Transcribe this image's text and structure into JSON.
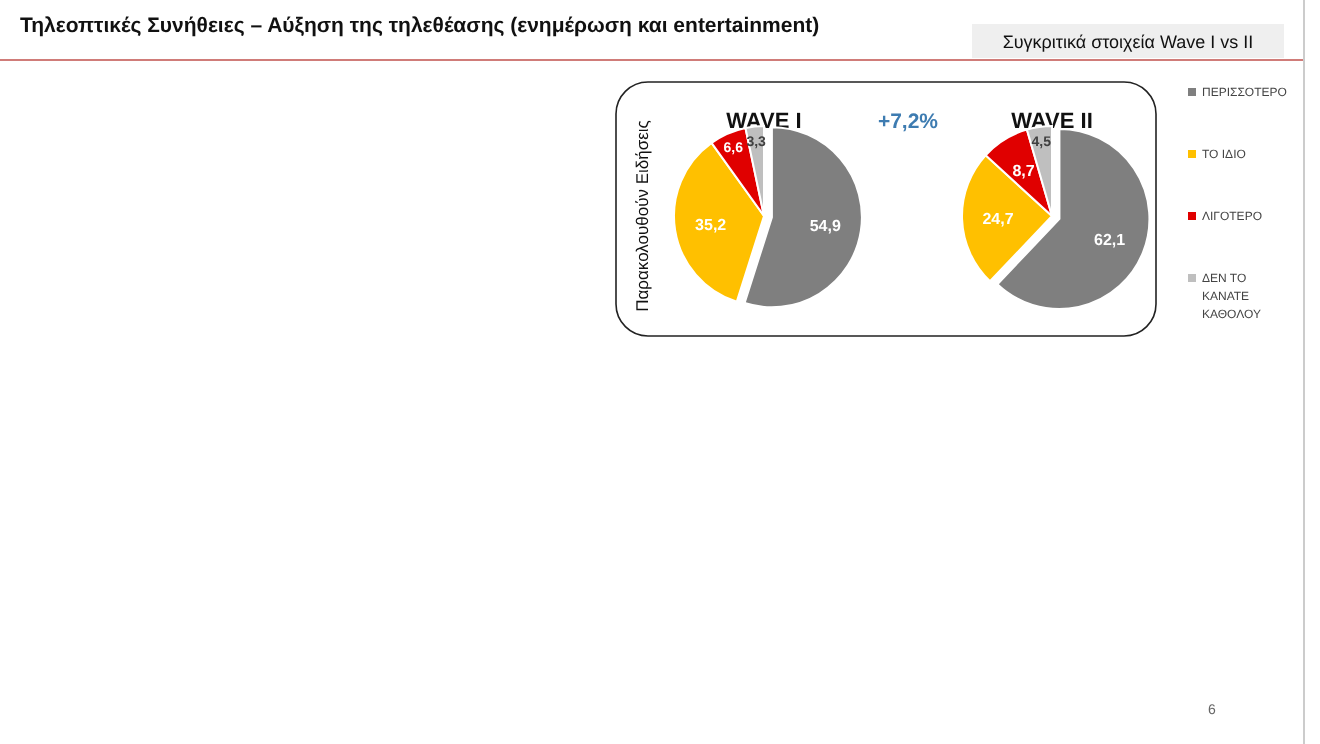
{
  "chart_data": [
    {
      "type": "other",
      "title": "Τηλεοπτικές Συνήθειες – Αύξηση της τηλεθέασης (ενημέρωση και entertainment)",
      "subtitle": "Συγκριτικά στοιχεία Wave I vs II",
      "annotations": [
        "6"
      ]
    },
    {
      "type": "pie",
      "title": "WAVE I",
      "ylabel": "Παρακολουθούν Ειδήσεις",
      "annotations": [
        "+7,2%"
      ],
      "categories": [
        null,
        null,
        null,
        null
      ],
      "values": [
        54.9,
        35.2,
        6.6,
        3.3
      ],
      "value_labels": [
        "54,9",
        "35,2",
        "6,6",
        "3,3"
      ],
      "colors": [
        "#7f7f7f",
        "#ffc000",
        "#e00000",
        "#bfbfbf"
      ]
    },
    {
      "type": "pie",
      "title": "WAVE II",
      "legend": "right",
      "categories": [
        "ΠΕΡΙΣΣΟΤΕΡΟ",
        "ΤΟ ΙΔΙΟ",
        "ΛΙΓΟΤΕΡΟ",
        "ΔΕΝ ΤΟ ΚΑΝΑΤΕ ΚΑΘΟΛΟΥ"
      ],
      "values": [
        62.1,
        24.7,
        8.7,
        4.5
      ],
      "value_labels": [
        "62,1",
        "24,7",
        "8,7",
        "4,5"
      ],
      "colors": [
        "#7f7f7f",
        "#ffc000",
        "#e00000",
        "#bfbfbf"
      ]
    }
  ]
}
